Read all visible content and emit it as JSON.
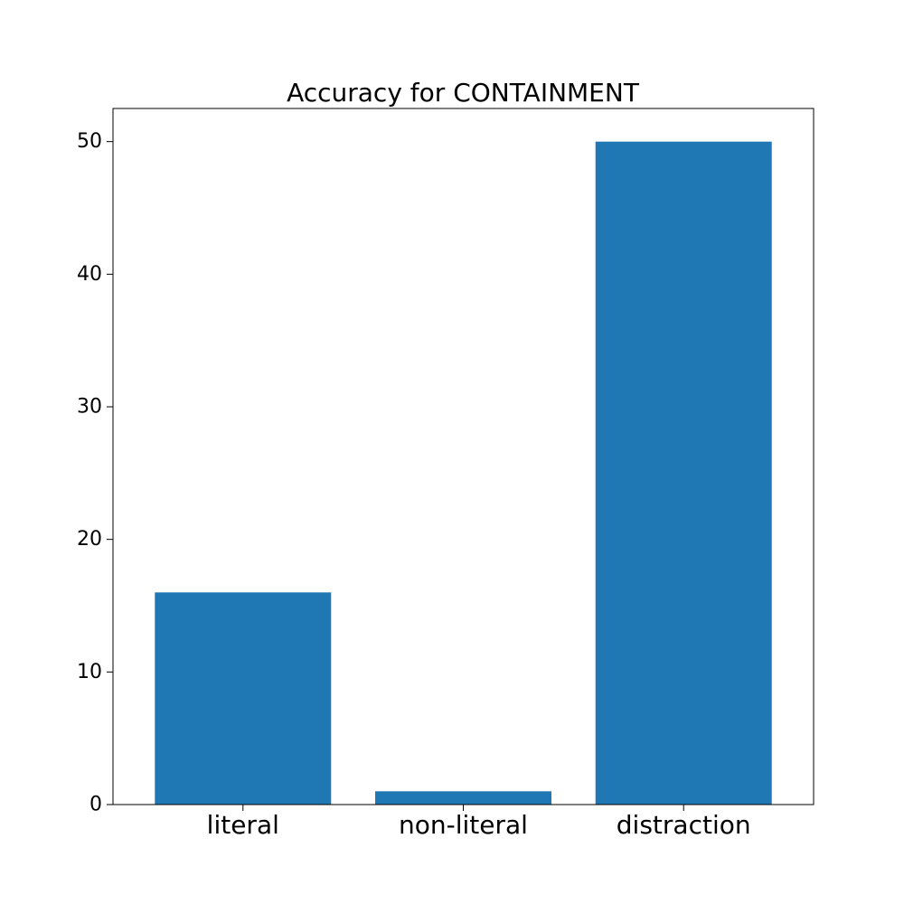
{
  "chart_data": {
    "type": "bar",
    "title": "Accuracy for CONTAINMENT",
    "xlabel": "",
    "ylabel": "",
    "categories": [
      "literal",
      "non-literal",
      "distraction"
    ],
    "values": [
      16,
      1,
      50
    ],
    "ylim": [
      0,
      52.5
    ],
    "yticks": [
      0,
      10,
      20,
      30,
      40,
      50
    ],
    "grid": false,
    "legend": "none",
    "bar_color": "#1f77b4"
  }
}
